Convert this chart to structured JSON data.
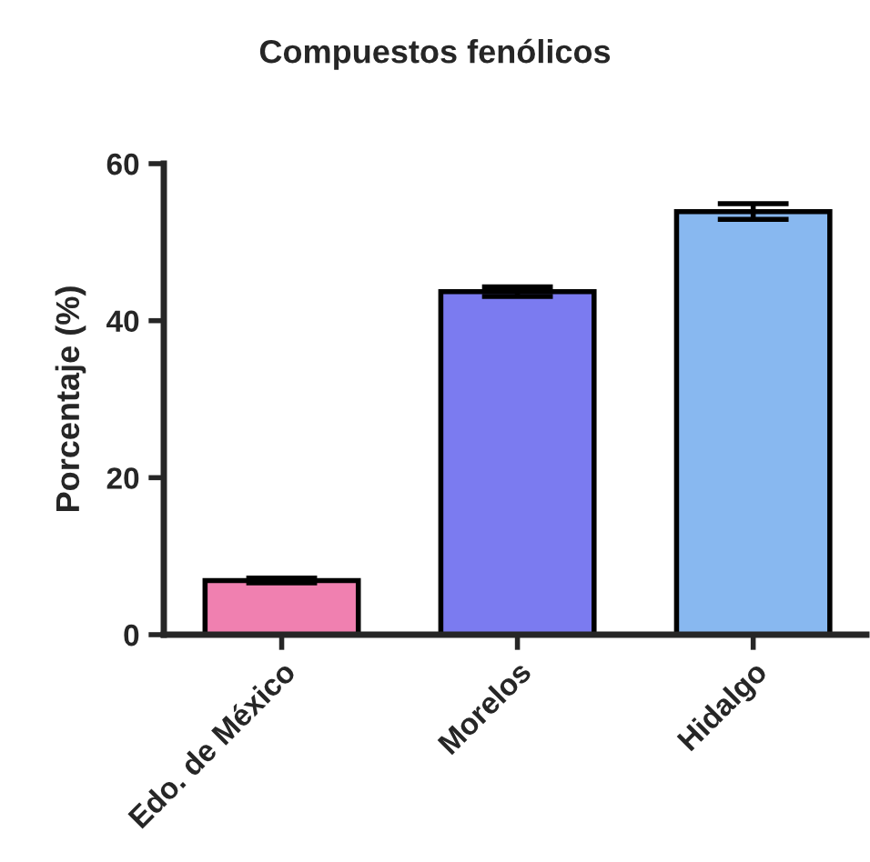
{
  "chart_data": {
    "type": "bar",
    "title": "Compuestos fenólicos",
    "ylabel": "Porcentaje (%)",
    "categories": [
      "Edo. de México",
      "Morelos",
      "Hidalgo"
    ],
    "values": [
      6.9,
      43.7,
      53.9
    ],
    "errors": [
      0.3,
      0.6,
      1.0
    ],
    "colors": [
      "#f080b0",
      "#7b7bf0",
      "#88b8f0"
    ],
    "ylim": [
      0,
      60
    ],
    "yticks": [
      0,
      20,
      40,
      60
    ],
    "grid": false,
    "legend": false
  }
}
